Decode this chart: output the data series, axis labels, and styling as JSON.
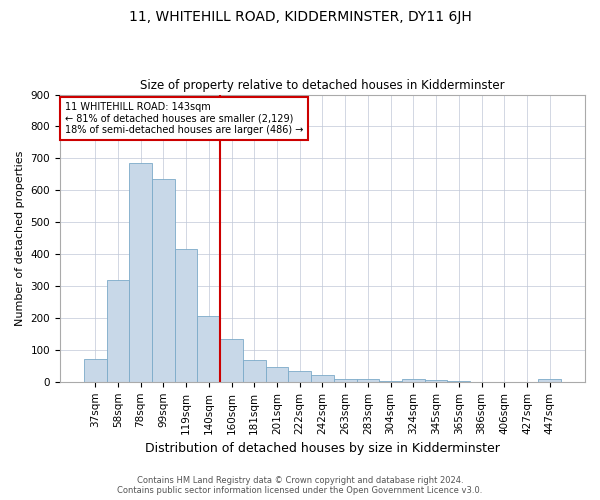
{
  "title": "11, WHITEHILL ROAD, KIDDERMINSTER, DY11 6JH",
  "subtitle": "Size of property relative to detached houses in Kidderminster",
  "xlabel": "Distribution of detached houses by size in Kidderminster",
  "ylabel": "Number of detached properties",
  "categories": [
    "37sqm",
    "58sqm",
    "78sqm",
    "99sqm",
    "119sqm",
    "140sqm",
    "160sqm",
    "181sqm",
    "201sqm",
    "222sqm",
    "242sqm",
    "263sqm",
    "283sqm",
    "304sqm",
    "324sqm",
    "345sqm",
    "365sqm",
    "386sqm",
    "406sqm",
    "427sqm",
    "447sqm"
  ],
  "values": [
    70,
    320,
    685,
    635,
    415,
    207,
    135,
    68,
    46,
    33,
    22,
    10,
    8,
    2,
    8,
    5,
    2,
    1,
    1,
    1,
    8
  ],
  "bar_color": "#c8d8e8",
  "bar_edge_color": "#7baac8",
  "vline_x": 5.5,
  "vline_color": "#cc0000",
  "annotation_title": "11 WHITEHILL ROAD: 143sqm",
  "annotation_line1": "← 81% of detached houses are smaller (2,129)",
  "annotation_line2": "18% of semi-detached houses are larger (486) →",
  "annotation_box_color": "#ffffff",
  "annotation_box_edge_color": "#cc0000",
  "footnote1": "Contains HM Land Registry data © Crown copyright and database right 2024.",
  "footnote2": "Contains public sector information licensed under the Open Government Licence v3.0.",
  "background_color": "#ffffff",
  "grid_color": "#c0c8d8",
  "ylim": [
    0,
    900
  ],
  "yticks": [
    0,
    100,
    200,
    300,
    400,
    500,
    600,
    700,
    800,
    900
  ],
  "title_fontsize": 10,
  "subtitle_fontsize": 8.5,
  "xlabel_fontsize": 9,
  "ylabel_fontsize": 8,
  "tick_fontsize": 7.5,
  "annotation_fontsize": 7,
  "footnote_fontsize": 6
}
